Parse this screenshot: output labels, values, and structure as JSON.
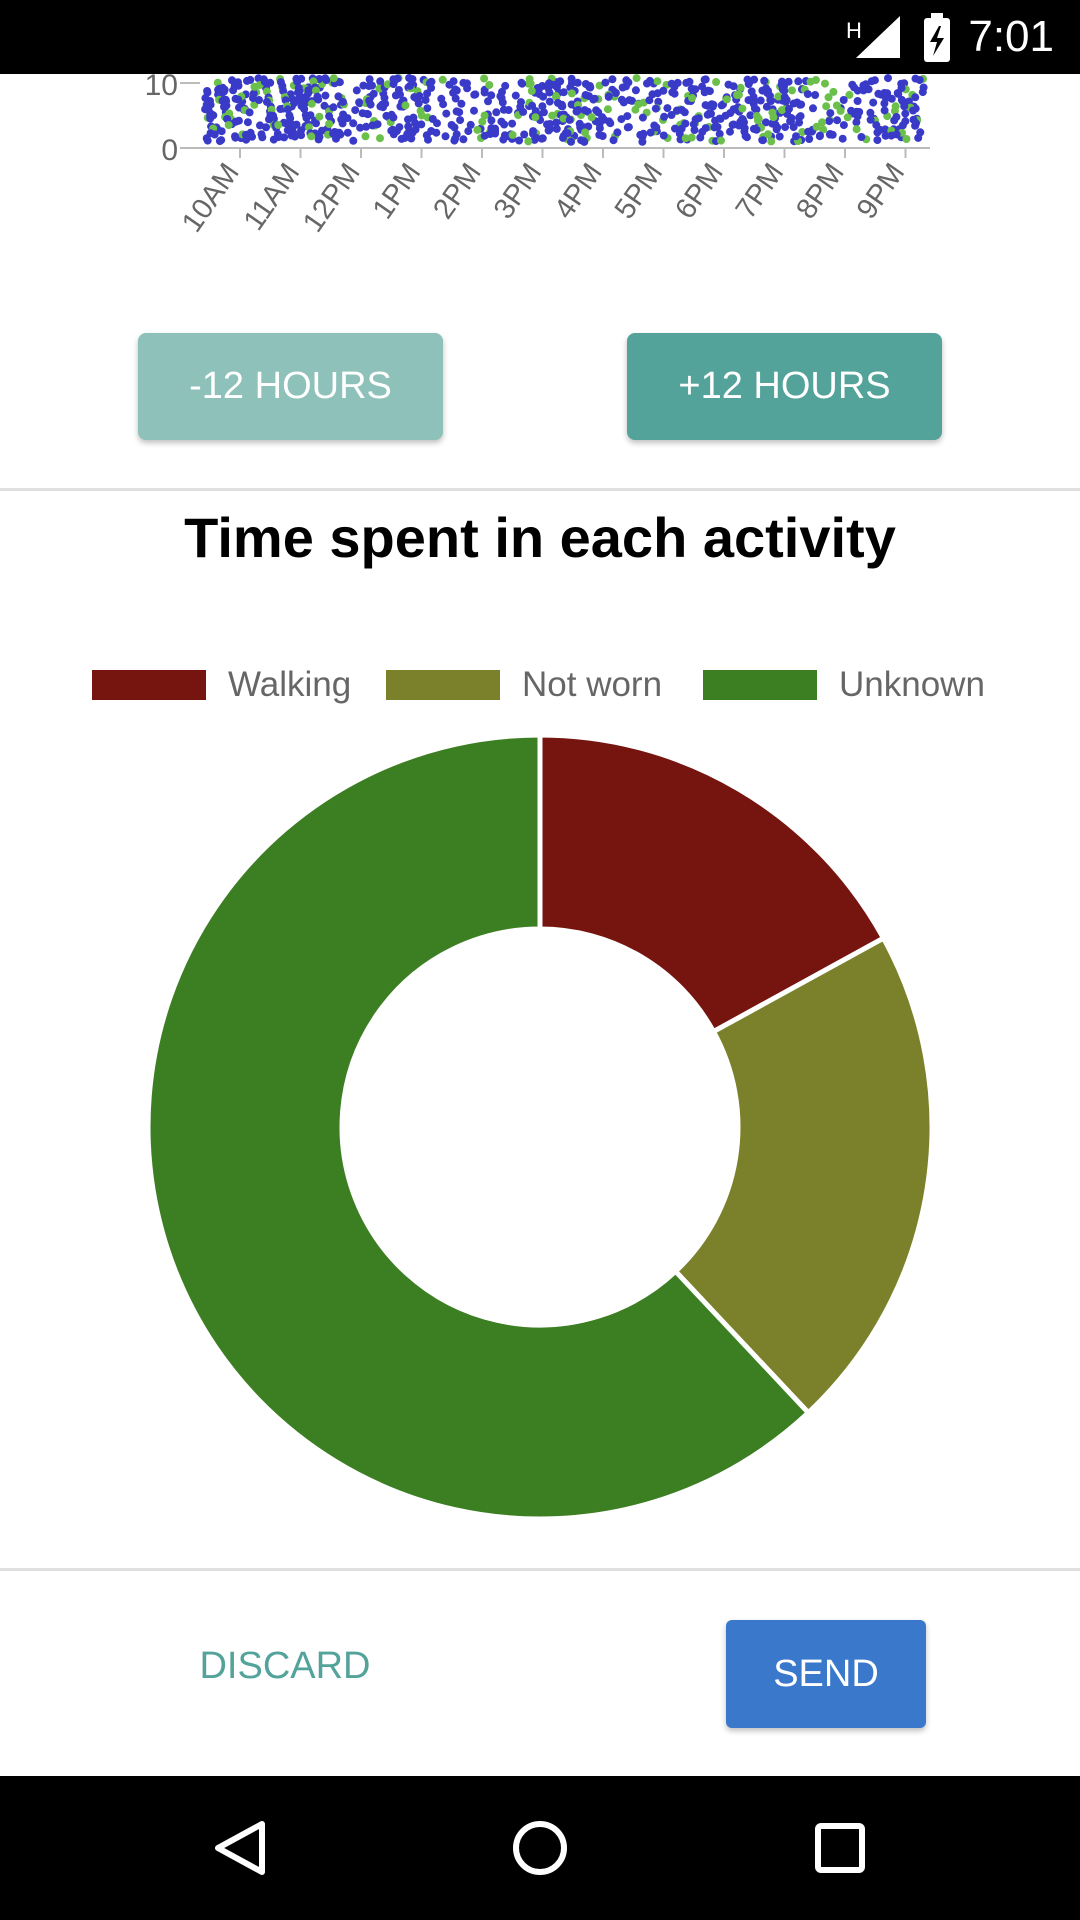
{
  "status_bar": {
    "time": "7:01",
    "network_label": "H",
    "icons": [
      "signal-icon",
      "battery-charging-icon"
    ]
  },
  "scatter": {
    "y_ticks": [
      "10",
      "0"
    ],
    "x_ticks": [
      "10AM",
      "11AM",
      "12PM",
      "1PM",
      "2PM",
      "3PM",
      "4PM",
      "5PM",
      "6PM",
      "7PM",
      "8PM",
      "9PM"
    ],
    "colors": {
      "primary": "#3a3ac8",
      "secondary": "#6ac04a"
    }
  },
  "navigation": {
    "prev_label": "-12 HOURS",
    "next_label": "+12 HOURS"
  },
  "chart_data": {
    "type": "pie",
    "title": "Time spent in each activity",
    "categories": [
      "Walking",
      "Not worn",
      "Unknown"
    ],
    "values": [
      17,
      21,
      62
    ],
    "colors": [
      "#76150f",
      "#7a812a",
      "#3c7e22"
    ],
    "legend_position": "top",
    "donut": true
  },
  "actions": {
    "discard_label": "DISCARD",
    "send_label": "SEND"
  },
  "system_nav": {
    "icons": [
      "back-icon",
      "home-icon",
      "recents-icon"
    ]
  }
}
